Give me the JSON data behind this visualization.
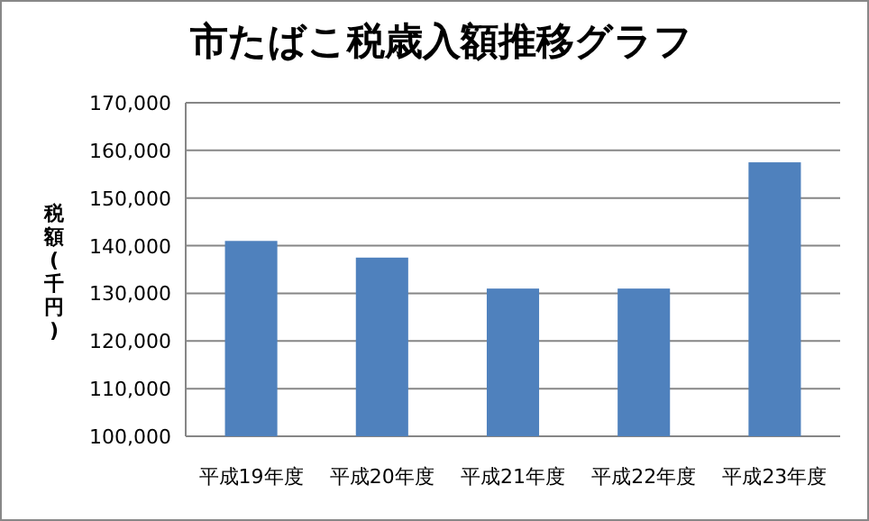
{
  "chart_data": {
    "type": "bar",
    "title": "市たばこ税歳入額推移グラフ",
    "ylabel": "税額(千円)",
    "categories": [
      "平成19年度",
      "平成20年度",
      "平成21年度",
      "平成22年度",
      "平成23年度"
    ],
    "values": [
      141000,
      137500,
      131000,
      131000,
      157500
    ],
    "color": "#4f81bd",
    "ylim": [
      100000,
      170000
    ],
    "yticks": [
      {
        "value": 100000,
        "label": "100,000"
      },
      {
        "value": 110000,
        "label": "110,000"
      },
      {
        "value": 120000,
        "label": "120,000"
      },
      {
        "value": 130000,
        "label": "130,000"
      },
      {
        "value": 140000,
        "label": "140,000"
      },
      {
        "value": 150000,
        "label": "150,000"
      },
      {
        "value": 160000,
        "label": "160,000"
      },
      {
        "value": 170000,
        "label": "170,000"
      }
    ],
    "grid": "y"
  }
}
